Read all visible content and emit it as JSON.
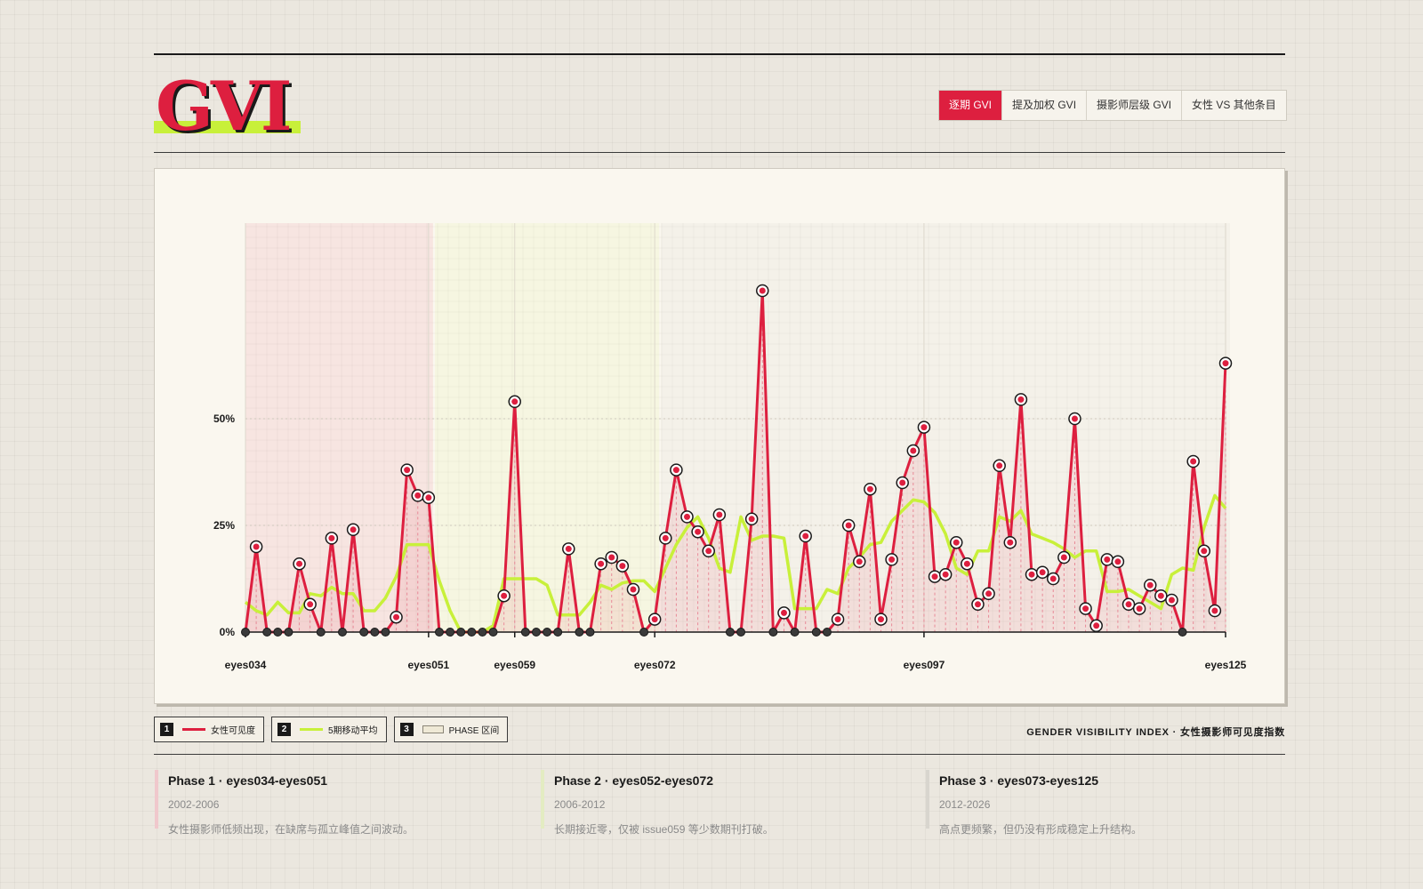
{
  "app": {
    "logo_text": "GVI"
  },
  "tabs": [
    {
      "label": "逐期 GVI",
      "active": true
    },
    {
      "label": "提及加权 GVI",
      "active": false
    },
    {
      "label": "摄影师层级 GVI",
      "active": false
    },
    {
      "label": "女性 VS 其他条目",
      "active": false
    }
  ],
  "colors": {
    "accent": "#dd1f3f",
    "ma": "#c8f03a",
    "ink": "#1a1a1a"
  },
  "chart_data": {
    "type": "line",
    "ylim": [
      0,
      100
    ],
    "yticks": [
      0,
      25,
      50
    ],
    "ytick_labels": [
      "0%",
      "25%",
      "50%"
    ],
    "xtick_labels": [
      "eyes034",
      "eyes051",
      "eyes059",
      "eyes072",
      "eyes097",
      "eyes125"
    ],
    "xticks_index": [
      0,
      17,
      25,
      38,
      63,
      91
    ],
    "series": [
      {
        "name": "女性可见度",
        "color": "#dd1f3f",
        "values": [
          0,
          20,
          0,
          0,
          0,
          16,
          6.5,
          0,
          22,
          0,
          24,
          0,
          0,
          0,
          3.5,
          38,
          32,
          31.5,
          0,
          0,
          0,
          0,
          0,
          0,
          8.5,
          54,
          0,
          0,
          0,
          0,
          19.5,
          0,
          0,
          16,
          17.5,
          15.5,
          10,
          0,
          3,
          22,
          38,
          27,
          23.5,
          19,
          27.5,
          0,
          0,
          26.5,
          80,
          0,
          4.5,
          0,
          22.5,
          0,
          0,
          3,
          25,
          16.5,
          33.5,
          3,
          17,
          35,
          42.5,
          48,
          13,
          13.5,
          21,
          16,
          6.5,
          9,
          39,
          21,
          54.5,
          13.5,
          14,
          12.5,
          17.5,
          50,
          5.5,
          1.5,
          17,
          16.5,
          6.5,
          5.5,
          11,
          8.5,
          7.5,
          0,
          40,
          19,
          5,
          63
        ]
      },
      {
        "name": "5期移动平均",
        "color": "#c8f03a",
        "values": [
          7,
          5,
          4,
          7,
          4.5,
          4.5,
          9,
          8.5,
          10.5,
          9,
          9,
          5,
          5,
          8,
          13,
          20.5,
          20.5,
          20.5,
          12,
          5,
          0,
          0,
          0,
          1.5,
          12.5,
          12.5,
          12.5,
          12.5,
          11,
          4,
          4,
          4,
          7,
          11,
          10,
          11.5,
          12,
          12,
          9.5,
          15,
          20.5,
          24.5,
          27,
          22,
          15,
          14,
          27,
          21.5,
          22.5,
          22.5,
          22,
          5.5,
          5.5,
          5.5,
          10,
          9,
          15,
          17.5,
          20.5,
          21,
          26,
          28.5,
          31,
          30.5,
          28,
          23,
          15,
          13.5,
          19,
          19,
          27,
          26,
          28.5,
          23,
          22,
          21,
          19.5,
          17.5,
          19,
          19,
          9.5,
          9.5,
          10,
          8.5,
          7,
          5.5,
          13.5,
          15,
          14.5,
          24.5,
          32,
          29
        ]
      }
    ],
    "phases": [
      {
        "start": 0,
        "end": 17,
        "color": "#dd1f3f"
      },
      {
        "start": 18,
        "end": 38,
        "color": "#c8f03a"
      },
      {
        "start": 39,
        "end": 91,
        "color": "#b5b0a3"
      }
    ],
    "grid": true
  },
  "legend": [
    {
      "num": "1",
      "label": "女性可见度"
    },
    {
      "num": "2",
      "label": "5期移动平均"
    },
    {
      "num": "3",
      "label": "PHASE 区间"
    }
  ],
  "caption": "GENDER VISIBILITY INDEX · 女性摄影师可见度指数",
  "phases_info": [
    {
      "title": "Phase 1 · eyes034-eyes051",
      "years": "2002-2006",
      "desc": "女性摄影师低频出现，在缺席与孤立峰值之间波动。",
      "color": "#f0c8cc"
    },
    {
      "title": "Phase 2 · eyes052-eyes072",
      "years": "2006-2012",
      "desc": "长期接近零，仅被 issue059 等少数期刊打破。",
      "color": "#e3ecc2"
    },
    {
      "title": "Phase 3 · eyes073-eyes125",
      "years": "2012-2026",
      "desc": "高点更频繁，但仍没有形成稳定上升结构。",
      "color": "#d8d5ce"
    }
  ]
}
